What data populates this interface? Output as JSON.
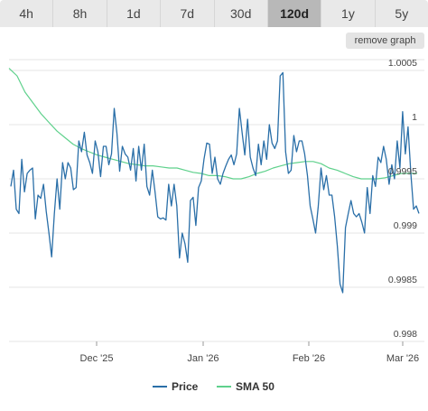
{
  "range_tabs": {
    "items": [
      {
        "label": "4h"
      },
      {
        "label": "8h"
      },
      {
        "label": "1d"
      },
      {
        "label": "7d"
      },
      {
        "label": "30d"
      },
      {
        "label": "120d",
        "active": true
      },
      {
        "label": "1y"
      },
      {
        "label": "5y"
      }
    ]
  },
  "remove_graph_label": "remove graph",
  "colors": {
    "price": "#2a6fa8",
    "sma": "#5fd18c",
    "grid": "#e4e4e4",
    "tab_bg": "#e9e9e9",
    "tab_active_bg": "#b8b8b8"
  },
  "chart_data": {
    "type": "line",
    "x_labels": [
      "Dec '25",
      "Jan '26",
      "Feb '26",
      "Mar '26"
    ],
    "y_ticks": [
      "0.998",
      "0.9985",
      "0.999",
      "0.9995",
      "1",
      "1.0005"
    ],
    "ylim": [
      0.998,
      1.00065
    ],
    "grid": true,
    "legend_position": "bottom",
    "series": [
      {
        "name": "Price",
        "values": [
          0.99943,
          0.99958,
          0.99922,
          0.99918,
          0.99968,
          0.99938,
          0.99955,
          0.99958,
          0.9996,
          0.99913,
          0.99935,
          0.99932,
          0.99945,
          0.9992,
          0.999,
          0.99878,
          0.99918,
          0.9995,
          0.99922,
          0.99965,
          0.9995,
          0.99965,
          0.9996,
          0.9994,
          0.99942,
          0.99985,
          0.99975,
          0.99993,
          0.99972,
          0.99965,
          0.99955,
          0.99985,
          0.99975,
          0.99952,
          0.9998,
          0.9998,
          0.99963,
          0.99973,
          1.00015,
          0.99992,
          0.99957,
          0.9998,
          0.99973,
          0.9997,
          0.99958,
          0.99978,
          0.99948,
          0.9998,
          0.99958,
          0.99982,
          0.99943,
          0.99935,
          0.99958,
          0.99938,
          0.99915,
          0.99913,
          0.99914,
          0.99912,
          0.99945,
          0.99925,
          0.99945,
          0.99925,
          0.99877,
          0.999,
          0.9989,
          0.99873,
          0.9993,
          0.99933,
          0.99907,
          0.99942,
          0.99948,
          0.99968,
          0.99983,
          0.99982,
          0.99955,
          0.9997,
          0.9995,
          0.99945,
          0.99955,
          0.99962,
          0.99968,
          0.99972,
          0.99963,
          0.99973,
          1.00015,
          0.99993,
          0.99972,
          1.00005,
          0.9997,
          0.9996,
          0.99953,
          0.99982,
          0.99963,
          0.99985,
          0.99968,
          1.0,
          0.99983,
          0.99978,
          0.99985,
          1.00045,
          1.00048,
          0.99975,
          0.99955,
          0.99958,
          0.9999,
          0.99975,
          0.99985,
          0.99985,
          0.99973,
          0.99953,
          0.99925,
          0.99913,
          0.999,
          0.99925,
          0.9996,
          0.9994,
          0.99953,
          0.99935,
          0.99935,
          0.99915,
          0.99888,
          0.99853,
          0.99845,
          0.99905,
          0.99918,
          0.9993,
          0.99918,
          0.99915,
          0.99918,
          0.9991,
          0.999,
          0.99942,
          0.99918,
          0.99953,
          0.99943,
          0.9997,
          0.99965,
          0.9998,
          0.99968,
          0.99945,
          0.99963,
          0.9995,
          0.99985,
          0.9996,
          1.00012,
          0.99973,
          0.99998,
          0.99955,
          0.99922,
          0.99925,
          0.99918
        ]
      },
      {
        "name": "SMA 50",
        "values": [
          1.00052,
          1.00045,
          1.0003,
          1.0002,
          1.0001,
          1.00002,
          0.99994,
          0.99988,
          0.99982,
          0.99978,
          0.99975,
          0.99972,
          0.9997,
          0.99968,
          0.99966,
          0.99964,
          0.99963,
          0.99962,
          0.99962,
          0.99961,
          0.9996,
          0.9996,
          0.99958,
          0.99956,
          0.99955,
          0.99953,
          0.99953,
          0.99952,
          0.9995,
          0.9995,
          0.99952,
          0.99955,
          0.99957,
          0.9996,
          0.99962,
          0.99964,
          0.99965,
          0.99966,
          0.99966,
          0.99964,
          0.9996,
          0.99958,
          0.99955,
          0.99952,
          0.9995,
          0.9995,
          0.9995,
          0.99951,
          0.99953,
          0.99955,
          0.99955,
          0.99955
        ]
      }
    ]
  }
}
